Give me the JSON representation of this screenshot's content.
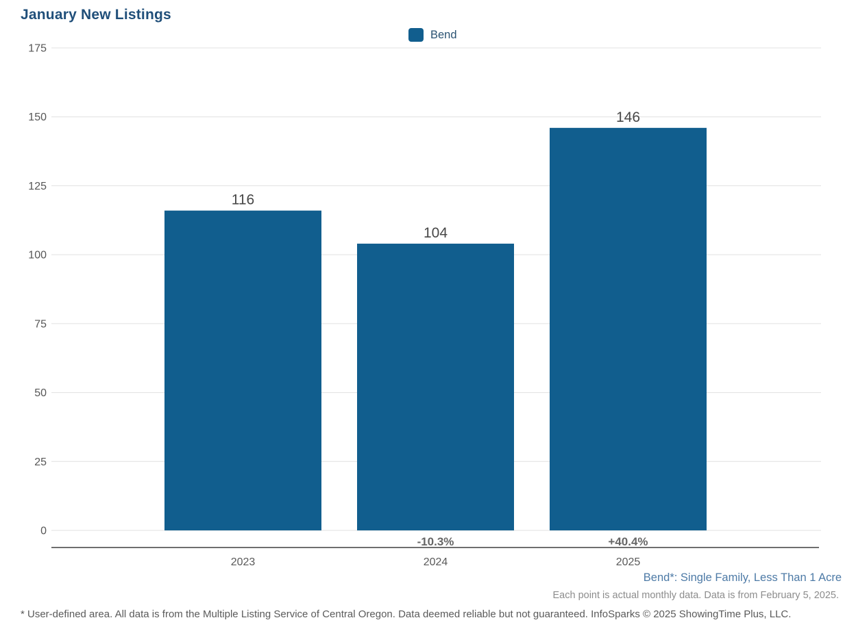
{
  "title": "January New Listings",
  "legend": {
    "label": "Bend",
    "swatch_color": "#115e8e"
  },
  "chart_data": {
    "type": "bar",
    "title": "January New Listings",
    "series_name": "Bend",
    "categories": [
      "2023",
      "2024",
      "2025"
    ],
    "values": [
      116,
      104,
      146
    ],
    "value_labels": [
      "116",
      "104",
      "146"
    ],
    "pct_change_labels": [
      "",
      "-10.3%",
      "+40.4%"
    ],
    "xlabel": "",
    "ylabel": "",
    "ylim": [
      0,
      175
    ],
    "yticks": [
      0,
      25,
      50,
      75,
      100,
      125,
      150,
      175
    ],
    "grid": "horizontal",
    "legend_position": "top-center",
    "bar_color": "#115e8e"
  },
  "colors": {
    "bar": "#115e8e",
    "title": "#1f4e79",
    "footnote_blue": "#4d7aa6",
    "gridline": "#e0e0e0"
  },
  "footnotes": {
    "series_definition": "Bend*: Single Family, Less Than 1 Acre",
    "data_note": "Each point is actual monthly data. Data is from February 5, 2025.",
    "disclaimer": "* User-defined area. All data is from the Multiple Listing Service of Central Oregon. Data deemed reliable but not guaranteed. InfoSparks © 2025 ShowingTime Plus, LLC."
  }
}
